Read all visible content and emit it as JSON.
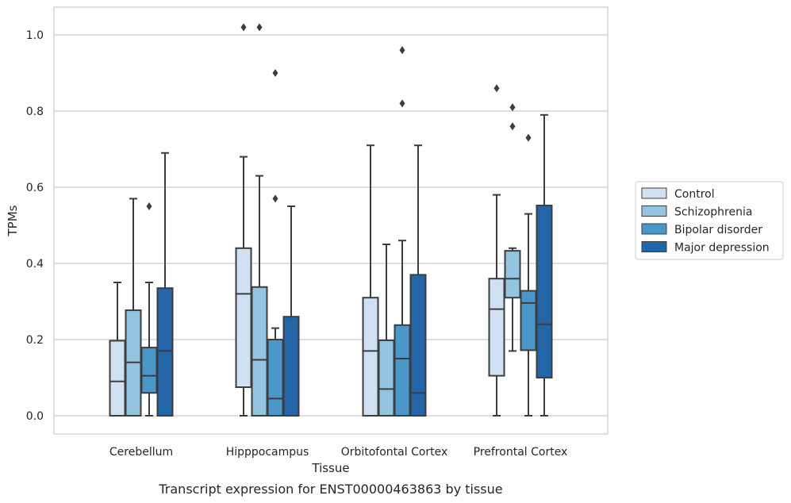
{
  "caption": "Transcript expression for ENST00000463863 by tissue",
  "chart_data": {
    "type": "box",
    "xlabel": "Tissue",
    "ylabel": "TPMs",
    "ylim": [
      -0.05,
      1.07
    ],
    "yticks": [
      0.0,
      0.2,
      0.4,
      0.6,
      0.8,
      1.0
    ],
    "ytick_labels": [
      "0.0",
      "0.2",
      "0.4",
      "0.6",
      "0.8",
      "1.0"
    ],
    "grid": "horizontal",
    "legend_position": "right",
    "categories": [
      "Cerebellum",
      "Hipppocampus",
      "Orbitofontal Cortex",
      "Prefrontal Cortex"
    ],
    "series": [
      {
        "name": "Control",
        "color": "#d0e1f2",
        "boxes": [
          {
            "whisker_low": 0.0,
            "q1": 0.0,
            "median": 0.09,
            "q3": 0.197,
            "whisker_high": 0.35,
            "outliers": []
          },
          {
            "whisker_low": 0.0,
            "q1": 0.075,
            "median": 0.32,
            "q3": 0.44,
            "whisker_high": 0.68,
            "outliers": [
              1.02
            ]
          },
          {
            "whisker_low": 0.0,
            "q1": 0.0,
            "median": 0.17,
            "q3": 0.31,
            "whisker_high": 0.71,
            "outliers": []
          },
          {
            "whisker_low": 0.0,
            "q1": 0.105,
            "median": 0.28,
            "q3": 0.36,
            "whisker_high": 0.58,
            "outliers": [
              0.86
            ]
          }
        ]
      },
      {
        "name": "Schizophrenia",
        "color": "#94c4df",
        "boxes": [
          {
            "whisker_low": 0.0,
            "q1": 0.0,
            "median": 0.14,
            "q3": 0.277,
            "whisker_high": 0.57,
            "outliers": []
          },
          {
            "whisker_low": 0.0,
            "q1": 0.0,
            "median": 0.147,
            "q3": 0.338,
            "whisker_high": 0.63,
            "outliers": [
              1.02
            ]
          },
          {
            "whisker_low": 0.0,
            "q1": 0.0,
            "median": 0.07,
            "q3": 0.198,
            "whisker_high": 0.45,
            "outliers": []
          },
          {
            "whisker_low": 0.17,
            "q1": 0.31,
            "median": 0.36,
            "q3": 0.433,
            "whisker_high": 0.44,
            "outliers": [
              0.81,
              0.76
            ]
          }
        ]
      },
      {
        "name": "Bipolar disorder",
        "color": "#4a98c9",
        "boxes": [
          {
            "whisker_low": 0.0,
            "q1": 0.06,
            "median": 0.105,
            "q3": 0.179,
            "whisker_high": 0.35,
            "outliers": [
              0.55
            ]
          },
          {
            "whisker_low": 0.0,
            "q1": 0.0,
            "median": 0.045,
            "q3": 0.2,
            "whisker_high": 0.23,
            "outliers": [
              0.9,
              0.57
            ]
          },
          {
            "whisker_low": 0.0,
            "q1": 0.0,
            "median": 0.15,
            "q3": 0.238,
            "whisker_high": 0.46,
            "outliers": [
              0.96,
              0.82
            ]
          },
          {
            "whisker_low": 0.0,
            "q1": 0.172,
            "median": 0.296,
            "q3": 0.328,
            "whisker_high": 0.53,
            "outliers": [
              0.73
            ]
          }
        ]
      },
      {
        "name": "Major depression",
        "color": "#2366a8",
        "boxes": [
          {
            "whisker_low": 0.0,
            "q1": 0.0,
            "median": 0.17,
            "q3": 0.335,
            "whisker_high": 0.69,
            "outliers": []
          },
          {
            "whisker_low": 0.0,
            "q1": 0.0,
            "median": 0.0,
            "q3": 0.26,
            "whisker_high": 0.55,
            "outliers": []
          },
          {
            "whisker_low": 0.0,
            "q1": 0.0,
            "median": 0.06,
            "q3": 0.37,
            "whisker_high": 0.71,
            "outliers": []
          },
          {
            "whisker_low": 0.0,
            "q1": 0.1,
            "median": 0.24,
            "q3": 0.552,
            "whisker_high": 0.79,
            "outliers": []
          }
        ]
      }
    ]
  }
}
